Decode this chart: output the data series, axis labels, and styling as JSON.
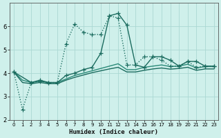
{
  "xlabel": "Humidex (Indice chaleur)",
  "bg_color": "#cff0eb",
  "grid_color": "#aad8d3",
  "line_color_dark": "#1a6b5e",
  "line_color_med": "#2a8a78",
  "xlim": [
    -0.5,
    23.5
  ],
  "ylim": [
    2,
    7
  ],
  "yticks": [
    2,
    3,
    4,
    5,
    6
  ],
  "xticks": [
    0,
    1,
    2,
    3,
    4,
    5,
    6,
    7,
    8,
    9,
    10,
    11,
    12,
    13,
    14,
    15,
    16,
    17,
    18,
    19,
    20,
    21,
    22,
    23
  ],
  "series": [
    {
      "x": [
        0,
        1,
        2,
        3,
        4,
        5,
        6,
        7,
        8,
        9,
        10,
        11,
        12,
        13,
        14,
        15,
        16,
        17,
        18,
        19,
        20,
        21,
        22,
        23
      ],
      "y": [
        4.05,
        2.45,
        3.6,
        3.65,
        3.6,
        3.6,
        5.25,
        6.1,
        5.75,
        5.65,
        5.65,
        6.45,
        6.35,
        4.35,
        4.35,
        4.7,
        4.7,
        4.55,
        4.3,
        4.3,
        4.5,
        4.25,
        4.3,
        4.3
      ],
      "linestyle": ":",
      "marker": "+",
      "lw": 1.0,
      "ms": 4
    },
    {
      "x": [
        0,
        2,
        3,
        4,
        5,
        6,
        7,
        8,
        9,
        10,
        11,
        12,
        13,
        14,
        15,
        16,
        17,
        18,
        19,
        20,
        21,
        22,
        23
      ],
      "y": [
        4.05,
        3.6,
        3.7,
        3.6,
        3.6,
        3.9,
        4.0,
        4.15,
        4.25,
        4.85,
        6.45,
        6.55,
        6.05,
        4.35,
        4.25,
        4.7,
        4.7,
        4.55,
        4.3,
        4.5,
        4.5,
        4.3,
        4.3
      ],
      "linestyle": "-",
      "marker": "+",
      "lw": 1.0,
      "ms": 4
    },
    {
      "x": [
        0,
        1,
        2,
        3,
        4,
        5,
        6,
        7,
        8,
        9,
        10,
        11,
        12,
        13,
        14,
        15,
        16,
        17,
        18,
        19,
        20,
        21,
        22,
        23
      ],
      "y": [
        4.05,
        3.7,
        3.6,
        3.65,
        3.6,
        3.6,
        3.75,
        3.9,
        4.0,
        4.1,
        4.2,
        4.3,
        4.4,
        4.15,
        4.15,
        4.25,
        4.3,
        4.35,
        4.28,
        4.3,
        4.38,
        4.22,
        4.28,
        4.28
      ],
      "linestyle": "-",
      "marker": null,
      "lw": 1.0,
      "ms": null
    },
    {
      "x": [
        0,
        1,
        2,
        3,
        4,
        5,
        6,
        7,
        8,
        9,
        10,
        11,
        12,
        13,
        14,
        15,
        16,
        17,
        18,
        19,
        20,
        21,
        22,
        23
      ],
      "y": [
        4.05,
        3.6,
        3.55,
        3.6,
        3.55,
        3.55,
        3.7,
        3.82,
        3.92,
        4.02,
        4.1,
        4.18,
        4.25,
        4.05,
        4.05,
        4.12,
        4.18,
        4.22,
        4.17,
        4.2,
        4.25,
        4.12,
        4.18,
        4.18
      ],
      "linestyle": "-",
      "marker": null,
      "lw": 1.0,
      "ms": null
    }
  ]
}
